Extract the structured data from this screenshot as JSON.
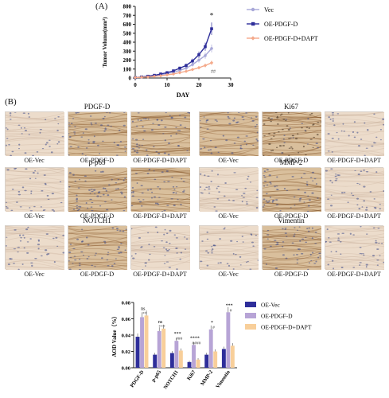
{
  "panels": {
    "a_label": "(A)",
    "b_label": "(B)"
  },
  "growth_chart": {
    "chart_data": {
      "type": "line",
      "ylabel": "Tumor Volume(mm³)",
      "xlabel": "DAY",
      "x_ticks": [
        0,
        10,
        20,
        30
      ],
      "y_ticks": [
        0,
        100,
        200,
        300,
        400,
        500,
        600,
        700,
        800
      ],
      "xlim": [
        0,
        30
      ],
      "ylim": [
        0,
        800
      ],
      "x": [
        0,
        2,
        4,
        6,
        8,
        10,
        12,
        14,
        16,
        18,
        20,
        22,
        24
      ],
      "series": [
        {
          "name": "Vec",
          "color": "#a8a8d8",
          "values": [
            5,
            10,
            15,
            25,
            35,
            50,
            65,
            85,
            110,
            150,
            200,
            250,
            330
          ]
        },
        {
          "name": "OE-PDGF-D",
          "color": "#2e2e9a",
          "values": [
            5,
            12,
            20,
            30,
            45,
            60,
            80,
            110,
            140,
            190,
            260,
            350,
            550
          ]
        },
        {
          "name": "OE-PDGF-D+DAPT",
          "color": "#f4a98a",
          "values": [
            5,
            8,
            12,
            18,
            25,
            35,
            45,
            60,
            75,
            95,
            115,
            140,
            170
          ]
        }
      ],
      "annotations": [
        {
          "text": "*"
        },
        {
          "text": "##"
        }
      ]
    }
  },
  "ihc_groups": [
    {
      "title": "PDGF-D",
      "captions": [
        "OE-Vec",
        "OE-PDGF-D",
        "OE-PDGF-D+DAPT"
      ]
    },
    {
      "title": "Ki67",
      "captions": [
        "OE-Vec",
        "OE-PDGF-D",
        "OE-PDGF-D+DAPT"
      ]
    },
    {
      "title": "p-p65",
      "captions": [
        "OE-Vec",
        "OE-PDGF-D",
        "OE-PDGF-D+DAPT"
      ]
    },
    {
      "title": "MMP-2",
      "captions": [
        "OE-Vec",
        "OE-PDGF-D",
        "OE-PDGF-D+DAPT"
      ]
    },
    {
      "title": "NOTCH1",
      "captions": [
        "OE-Vec",
        "OE-PDGF-D",
        "OE-PDGF-D+DAPT"
      ]
    },
    {
      "title": "Vimentin",
      "captions": [
        "OE-Vec",
        "OE-PDGF-D",
        "OE-PDGF-D+DAPT"
      ]
    }
  ],
  "aod_chart": {
    "chart_data": {
      "type": "bar",
      "ylabel": "AOD Value（%）",
      "y_ticks": [
        "0.00",
        "0.02",
        "0.04",
        "0.06",
        "0.08"
      ],
      "ylim": [
        0,
        0.08
      ],
      "categories": [
        "PDGF-D",
        "p-p65",
        "NOTCH1",
        "Ki67",
        "MMP-2",
        "Vimentin"
      ],
      "series": [
        {
          "name": "OE-Vec",
          "color": "#2e2e9a",
          "values": [
            0.038,
            0.016,
            0.018,
            0.007,
            0.016,
            0.023
          ]
        },
        {
          "name": "OE-PDGF-D",
          "color": "#b7a4d6",
          "values": [
            0.062,
            0.045,
            0.033,
            0.028,
            0.047,
            0.068
          ]
        },
        {
          "name": "OE-PDGF-D+DAPT",
          "color": "#f8cf9a",
          "values": [
            0.064,
            0.048,
            0.021,
            0.01,
            0.02,
            0.027
          ]
        }
      ],
      "annotations": {
        "PDGF-D": [
          "ns",
          "**"
        ],
        "p-p65": [
          "ns",
          "***"
        ],
        "NOTCH1": [
          "***",
          "###"
        ],
        "Ki67": [
          "****",
          "####"
        ],
        "MMP-2": [
          "*",
          "#"
        ],
        "Vimentin": [
          "***",
          "#"
        ]
      }
    }
  },
  "colors": {
    "tissue_base": "#ecdccb",
    "nuclei": "#3d4a8a",
    "stain_brown": "#8a5a2e"
  }
}
